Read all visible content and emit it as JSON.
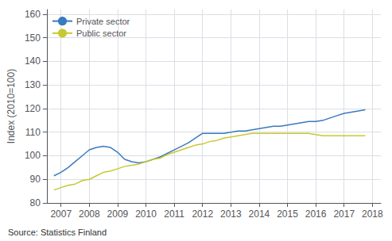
{
  "chart_data": {
    "type": "line",
    "ylabel": "Index (2010=100)",
    "annotations": [
      "Source: Statistics Finland"
    ],
    "x": [
      2006.75,
      2007.0,
      2007.25,
      2007.5,
      2007.75,
      2008.0,
      2008.25,
      2008.5,
      2008.75,
      2009.0,
      2009.25,
      2009.5,
      2009.75,
      2010.0,
      2010.25,
      2010.5,
      2010.75,
      2011.0,
      2011.25,
      2011.5,
      2011.75,
      2012.0,
      2012.25,
      2012.5,
      2012.75,
      2013.0,
      2013.25,
      2013.5,
      2013.75,
      2014.0,
      2014.25,
      2014.5,
      2014.75,
      2015.0,
      2015.25,
      2015.5,
      2015.75,
      2016.0,
      2016.25,
      2016.5,
      2016.75,
      2017.0,
      2017.25,
      2017.5,
      2017.75
    ],
    "series": [
      {
        "name": "Private sector",
        "color": "#3a7abf",
        "values": [
          91.5,
          93.0,
          95.0,
          97.5,
          100.0,
          102.5,
          103.5,
          104.0,
          103.5,
          101.5,
          98.5,
          97.5,
          97.0,
          97.5,
          98.5,
          99.5,
          101.0,
          102.5,
          104.0,
          105.5,
          107.5,
          109.5,
          109.5,
          109.5,
          109.5,
          110.0,
          110.5,
          110.5,
          111.0,
          111.5,
          112.0,
          112.5,
          112.5,
          113.0,
          113.5,
          114.0,
          114.5,
          114.5,
          115.0,
          116.0,
          117.0,
          118.0,
          118.5,
          119.0,
          119.5
        ]
      },
      {
        "name": "Public sector",
        "color": "#c8c832",
        "values": [
          85.5,
          86.5,
          87.5,
          88.0,
          89.5,
          90.0,
          91.5,
          93.0,
          93.5,
          94.5,
          95.5,
          96.0,
          96.5,
          97.5,
          98.5,
          99.0,
          100.5,
          101.5,
          102.5,
          103.5,
          104.5,
          105.0,
          106.0,
          106.5,
          107.5,
          108.0,
          108.5,
          109.0,
          109.5,
          109.5,
          109.5,
          109.5,
          109.5,
          109.5,
          109.5,
          109.5,
          109.5,
          109.0,
          108.5,
          108.5,
          108.5,
          108.5,
          108.5,
          108.5,
          108.5
        ]
      }
    ],
    "xlim": [
      2006.5,
      2018.3
    ],
    "ylim": [
      80,
      162
    ],
    "xticks": [
      2007,
      2008,
      2009,
      2010,
      2011,
      2012,
      2013,
      2014,
      2015,
      2016,
      2017,
      2018
    ],
    "yticks": [
      80,
      90,
      100,
      110,
      120,
      130,
      140,
      150,
      160
    ],
    "grid": true,
    "legend": "upper left"
  }
}
